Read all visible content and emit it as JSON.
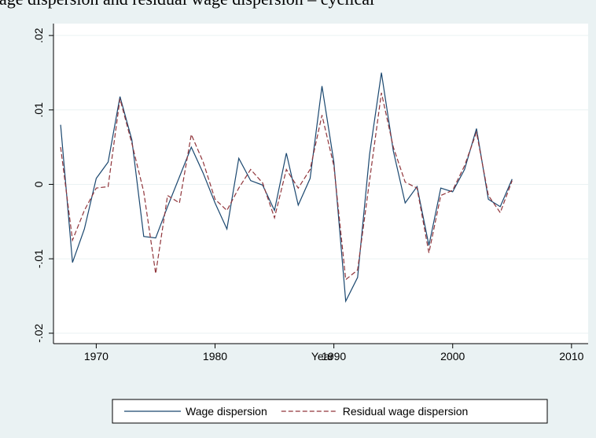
{
  "chart_data": {
    "type": "line",
    "title": "Wage dispersion and residual wage dispersion – cyclical",
    "x_label": "Year",
    "x": [
      1967,
      1968,
      1969,
      1970,
      1971,
      1972,
      1973,
      1974,
      1975,
      1976,
      1977,
      1978,
      1979,
      1980,
      1981,
      1982,
      1983,
      1984,
      1985,
      1986,
      1987,
      1988,
      1989,
      1990,
      1991,
      1992,
      1993,
      1994,
      1995,
      1996,
      1997,
      1998,
      1999,
      2000,
      2001,
      2002,
      2003,
      2004,
      2005
    ],
    "series": [
      {
        "name": "Wage dispersion",
        "color": "#1a476f",
        "dash": "solid",
        "values": [
          0.008,
          -0.0105,
          -0.006,
          0.0008,
          0.003,
          0.0118,
          0.006,
          -0.007,
          -0.0072,
          -0.003,
          0.001,
          0.005,
          0.0015,
          -0.0025,
          -0.006,
          0.0035,
          0.0005,
          -0.0001,
          -0.0035,
          0.0042,
          -0.0028,
          0.0008,
          0.0132,
          0.003,
          -0.0157,
          -0.0125,
          0.004,
          0.015,
          0.0045,
          -0.0025,
          -0.0003,
          -0.0082,
          -0.0005,
          -0.001,
          0.002,
          0.0075,
          -0.002,
          -0.003,
          0.0007
        ]
      },
      {
        "name": "Residual wage dispersion",
        "color": "#90353b",
        "dash": "dashed",
        "values": [
          0.005,
          -0.0075,
          -0.0035,
          -0.0005,
          -0.0003,
          0.0115,
          0.0055,
          -0.001,
          -0.012,
          -0.0015,
          -0.0025,
          0.0067,
          0.003,
          -0.002,
          -0.0035,
          -0.0005,
          0.002,
          0.0002,
          -0.0045,
          0.002,
          -0.0005,
          0.002,
          0.0093,
          0.0025,
          -0.0128,
          -0.0115,
          0.0005,
          0.0123,
          0.005,
          0.0003,
          -0.0005,
          -0.0092,
          -0.0015,
          -0.0008,
          0.0025,
          0.007,
          -0.0015,
          -0.0038,
          0.0005
        ]
      }
    ],
    "xlim": [
      1966.4,
      2011.4
    ],
    "xticks": [
      1970,
      1980,
      1990,
      2000,
      2010
    ],
    "ylim": [
      -0.0214,
      0.0216
    ],
    "yticks": [
      {
        "value": 0.02,
        "label": ".02"
      },
      {
        "value": 0.01,
        "label": ".01"
      },
      0,
      {
        "value": -0.01,
        "label": "-.01"
      },
      {
        "value": -0.02,
        "label": "-.02"
      }
    ],
    "grid": true,
    "legend": "bottom"
  }
}
